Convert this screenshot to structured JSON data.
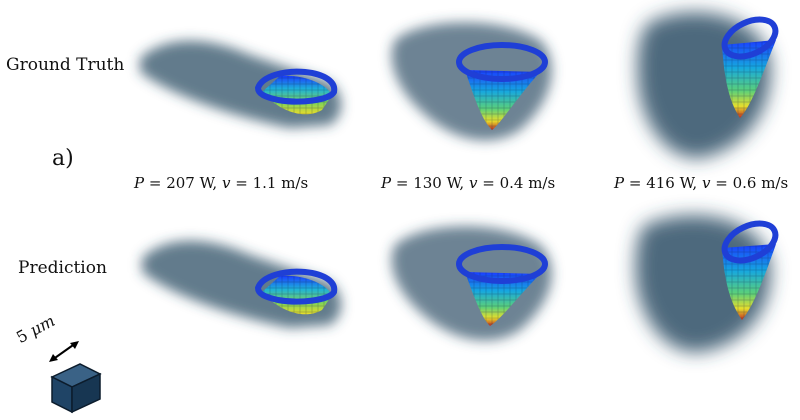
{
  "rows": {
    "top_label": "Ground Truth",
    "bottom_label": "Prediction"
  },
  "panel_label": "a)",
  "cases": [
    {
      "P": "207",
      "v": "1.1"
    },
    {
      "P": "130",
      "v": "0.4"
    },
    {
      "P": "416",
      "v": "0.6"
    }
  ],
  "units": {
    "power": "W",
    "speed": "m/s"
  },
  "symbols": {
    "power": "P",
    "speed": "v"
  },
  "scale_bar": {
    "value": "5",
    "unit": "μm"
  },
  "colors": {
    "shadow": "#2e4f66",
    "rim": "#1f3fd6",
    "cube": "#1f4466"
  }
}
